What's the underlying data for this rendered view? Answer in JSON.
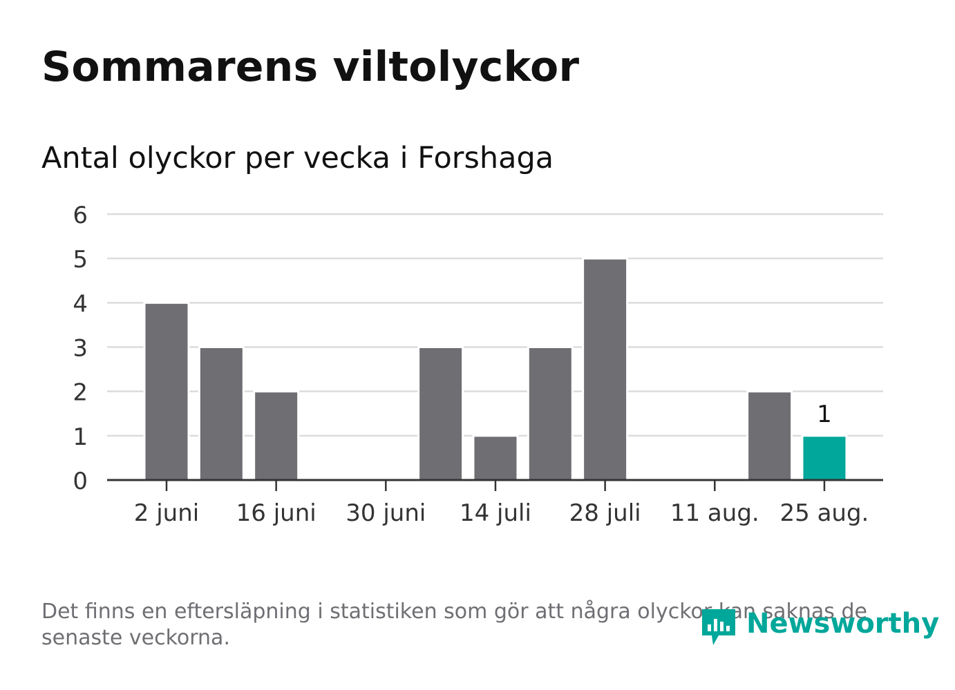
{
  "title": "Sommarens viltolyckor",
  "subtitle": "Antal olyckor per vecka i Forshaga",
  "footnote": "Det finns en eftersläpning i statistiken som gör att några olyckor kan saknas de senaste veckorna.",
  "brand": {
    "name": "Newsworthy",
    "icon": "newsworthy-logo-icon",
    "color": "#00a79a"
  },
  "colors": {
    "bar": "#6f6e73",
    "highlight": "#00a79a",
    "grid": "#dcdcdc",
    "axis": "#333333"
  },
  "chart_data": {
    "type": "bar",
    "title": "Antal olyckor per vecka i Forshaga",
    "xlabel": "",
    "ylabel": "",
    "ylim": [
      0,
      6
    ],
    "yticks": [
      "0",
      "1",
      "2",
      "3",
      "4",
      "5",
      "6"
    ],
    "xticks": [
      {
        "index": 0,
        "label": "2 juni"
      },
      {
        "index": 2,
        "label": "16 juni"
      },
      {
        "index": 4,
        "label": "30 juni"
      },
      {
        "index": 6,
        "label": "14 juli"
      },
      {
        "index": 8,
        "label": "28 juli"
      },
      {
        "index": 10,
        "label": "11 aug."
      },
      {
        "index": 12,
        "label": "25 aug."
      }
    ],
    "values": [
      4,
      3,
      2,
      0,
      0,
      3,
      1,
      3,
      5,
      0,
      0,
      2,
      1
    ],
    "highlight_index": 12,
    "data_labels": [
      {
        "index": 12,
        "text": "1"
      }
    ],
    "grid": true,
    "legend": "none"
  }
}
